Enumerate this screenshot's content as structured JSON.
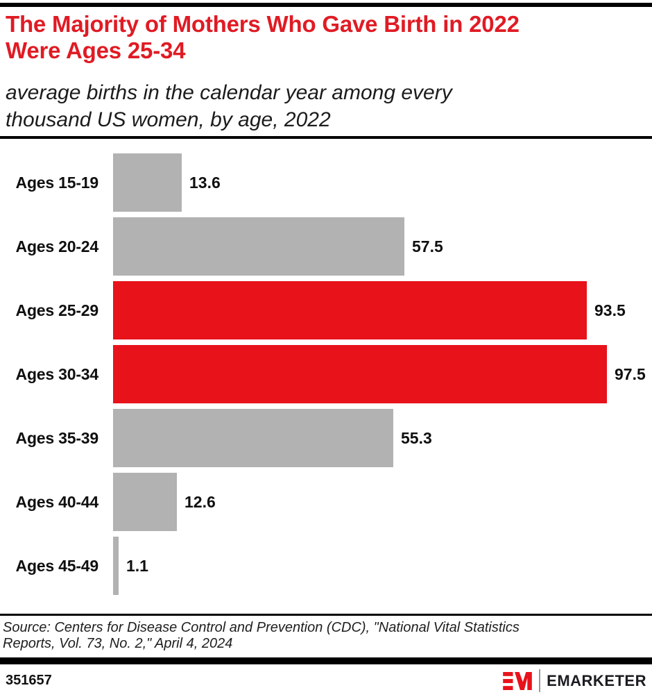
{
  "header": {
    "title": "The Majority of Mothers Who Gave Birth in 2022\nWere Ages 25-34",
    "subtitle": "average births in the calendar year among every\nthousand US women, by age, 2022"
  },
  "chart_data": {
    "type": "bar",
    "orientation": "horizontal",
    "title": "The Majority of Mothers Who Gave Birth in 2022 Were Ages 25-34",
    "subtitle": "average births in the calendar year among every thousand US women, by age, 2022",
    "categories": [
      "Ages 15-19",
      "Ages 20-24",
      "Ages 25-29",
      "Ages 30-34",
      "Ages 35-39",
      "Ages 40-44",
      "Ages 45-49"
    ],
    "values": [
      13.6,
      57.5,
      93.5,
      97.5,
      55.3,
      12.6,
      1.1
    ],
    "value_labels": [
      "13.6",
      "57.5",
      "93.5",
      "97.5",
      "55.3",
      "12.6",
      "1.1"
    ],
    "highlighted_indices": [
      2,
      3
    ],
    "highlighted_categories": [
      "Ages 25-29",
      "Ages 30-34"
    ],
    "bar_color_default": "#b2b2b2",
    "bar_color_highlight": "#e8121b",
    "xlim": [
      0,
      100
    ],
    "grid": "off",
    "axis_ticks": "none",
    "legend": "none",
    "data_labels": "end-of-bar"
  },
  "colors": {
    "title_red": "#e01b24",
    "bar_red": "#e8121b",
    "bar_gray": "#b2b2b2",
    "band_black": "#000000",
    "wordmark_dark": "#1b1c20"
  },
  "source": {
    "text": "Source: Centers for Disease Control and Prevention (CDC), \"National Vital Statistics\nReports, Vol. 73, No. 2,\" April 4, 2024"
  },
  "footer": {
    "chart_id": "351657",
    "logo_monogram": "EM",
    "brand_wordmark": "EMARKETER"
  }
}
